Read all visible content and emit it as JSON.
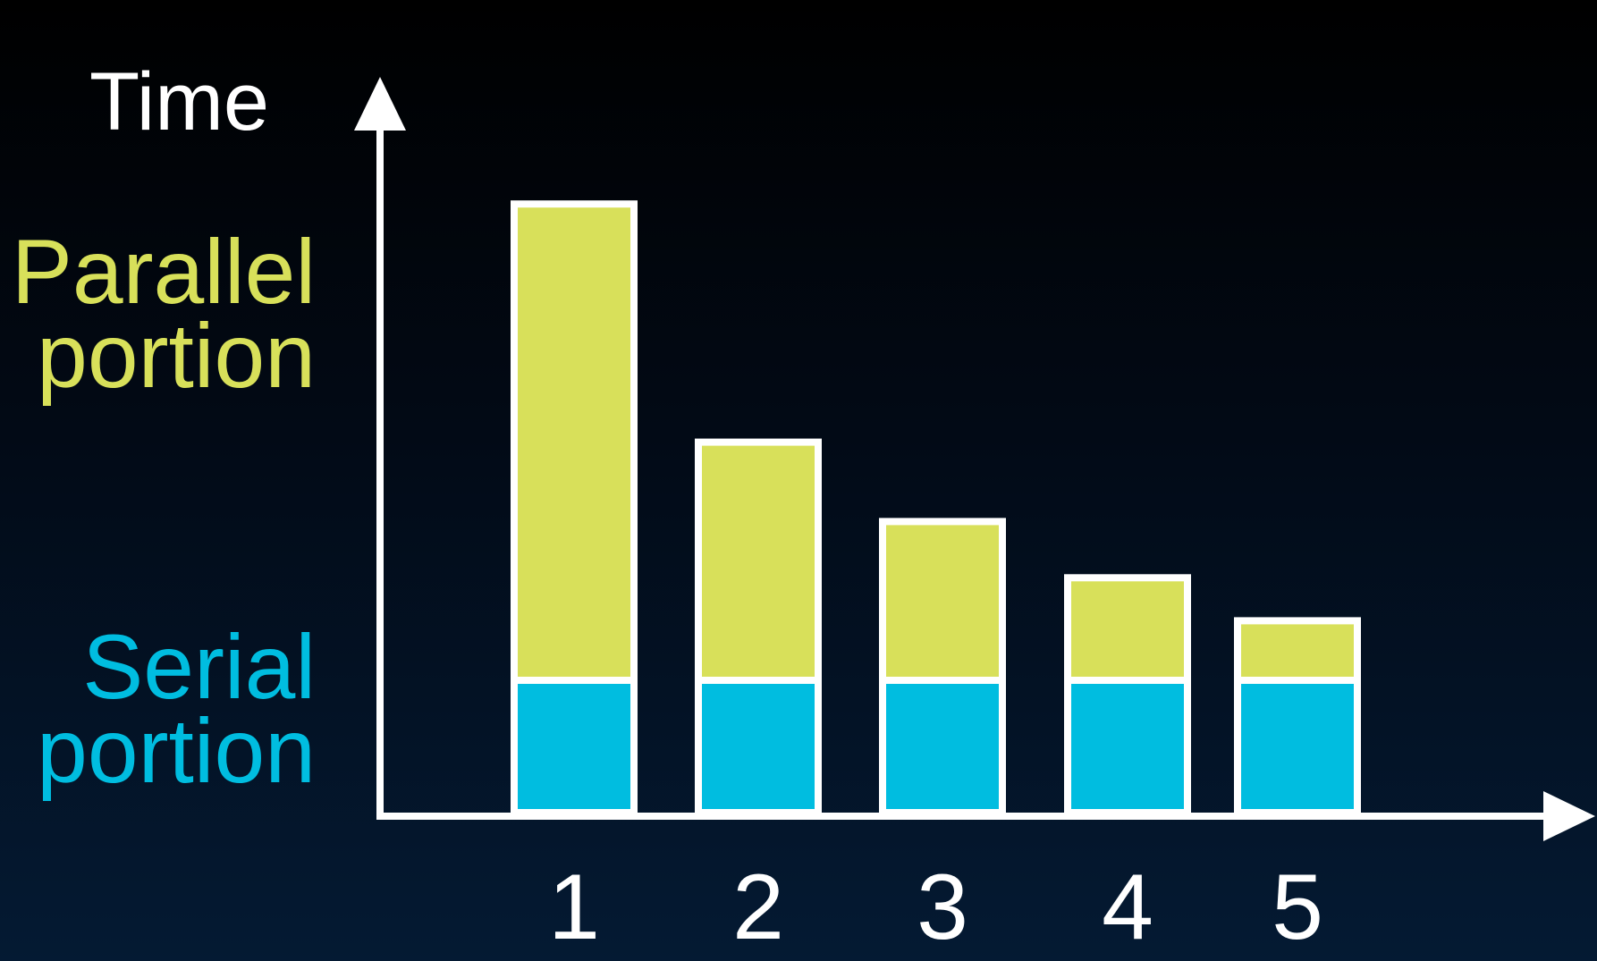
{
  "chart_data": {
    "type": "bar",
    "stacked": true,
    "title": "",
    "ylabel": "Time",
    "xlabel": "",
    "categories": [
      "1",
      "2",
      "3",
      "4",
      "5"
    ],
    "series": [
      {
        "name": "Serial portion",
        "values": [
          20,
          20,
          20,
          20,
          20
        ],
        "color": "#00bde0"
      },
      {
        "name": "Parallel portion",
        "values": [
          72,
          36,
          24,
          15.5,
          9
        ],
        "color": "#d8e05a"
      }
    ],
    "ylim": [
      0,
      95
    ],
    "grid": false,
    "legend_placement": "left",
    "axis_color": "#ffffff",
    "bar_outline_color": "#ffffff"
  }
}
